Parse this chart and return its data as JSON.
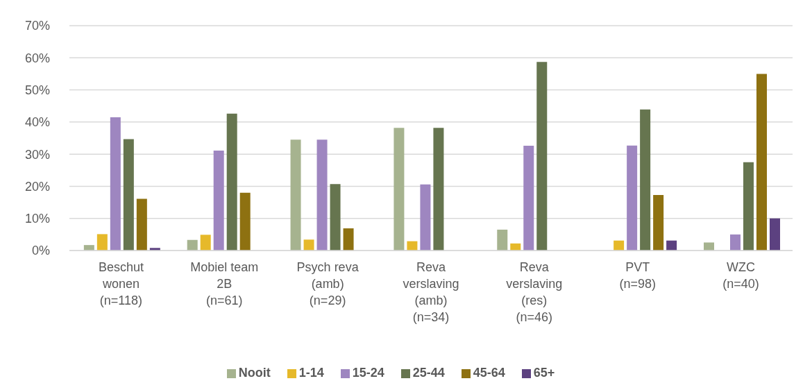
{
  "chart_data": {
    "type": "bar",
    "categories": [
      "Beschut\nwonen\n(n=118)",
      "Mobiel team\n2B\n(n=61)",
      "Psych reva\n(amb)\n(n=29)",
      "Reva\nverslaving\n(amb)\n(n=34)",
      "Reva\nverslaving\n(res)\n(n=46)",
      "PVT\n(n=98)",
      "WZC\n(n=40)"
    ],
    "series": [
      {
        "name": "Nooit",
        "color": "#a6b38f",
        "values": [
          1.7,
          3.3,
          34.5,
          38.2,
          6.5,
          0,
          2.5
        ]
      },
      {
        "name": "1-14",
        "color": "#e6b92a",
        "values": [
          5.1,
          4.9,
          3.4,
          2.9,
          2.2,
          3.1,
          0
        ]
      },
      {
        "name": "15-24",
        "color": "#9e86c0",
        "values": [
          41.5,
          31.1,
          34.5,
          20.6,
          32.6,
          32.7,
          5.0
        ]
      },
      {
        "name": "25-44",
        "color": "#66754f",
        "values": [
          34.7,
          42.6,
          20.7,
          38.2,
          58.7,
          43.9,
          27.5
        ]
      },
      {
        "name": "45-64",
        "color": "#8e7111",
        "values": [
          16.1,
          18.0,
          6.9,
          0,
          0,
          17.3,
          55.0
        ]
      },
      {
        "name": "65+",
        "color": "#5c4180",
        "values": [
          0.8,
          0,
          0,
          0,
          0,
          3.1,
          10.0
        ]
      }
    ],
    "ylim": [
      0,
      70
    ],
    "yticks": [
      {
        "value": 0,
        "label": "0%"
      },
      {
        "value": 10,
        "label": "10%"
      },
      {
        "value": 20,
        "label": "20%"
      },
      {
        "value": 30,
        "label": "30%"
      },
      {
        "value": 40,
        "label": "40%"
      },
      {
        "value": 50,
        "label": "50%"
      },
      {
        "value": 60,
        "label": "60%"
      },
      {
        "value": 70,
        "label": "70%"
      }
    ],
    "grid": "y",
    "legend": "bottom"
  }
}
